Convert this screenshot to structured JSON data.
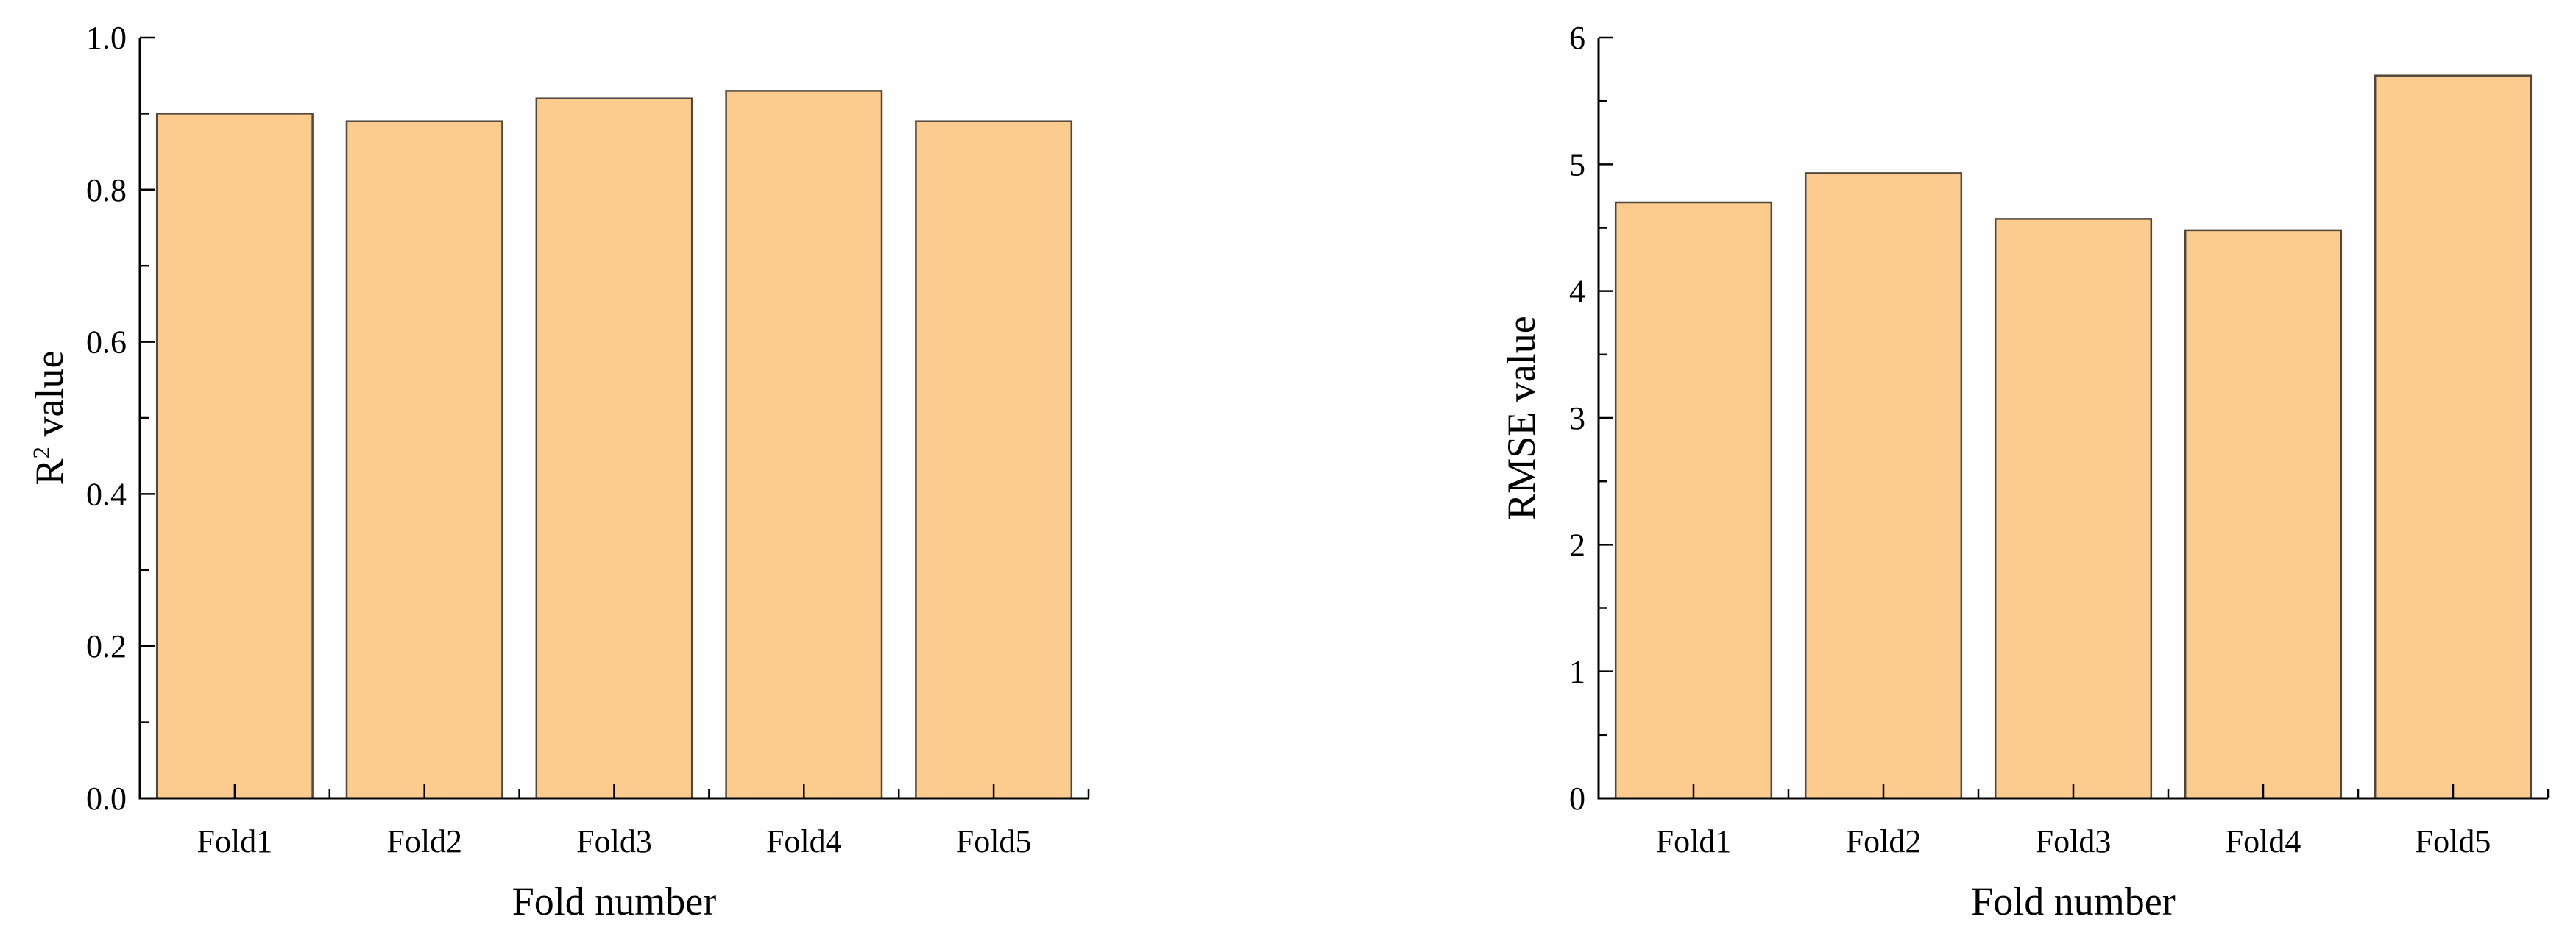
{
  "page": {
    "background": "#ffffff"
  },
  "chart_data": [
    {
      "type": "bar",
      "title": "",
      "categories": [
        "Fold1",
        "Fold2",
        "Fold3",
        "Fold4",
        "Fold5"
      ],
      "values": [
        0.9,
        0.89,
        0.92,
        0.93,
        0.89
      ],
      "xlabel": "Fold number",
      "ylabel": "R² value",
      "ylabel_parts": [
        {
          "text": "R",
          "superscript": false
        },
        {
          "text": "2",
          "superscript": true
        },
        {
          "text": " value",
          "superscript": false
        }
      ],
      "ylim": [
        0.0,
        1.0
      ],
      "y_major_step": 0.2,
      "y_minor_step": 0.1,
      "y_tick_labels": [
        "0.0",
        "0.2",
        "0.4",
        "0.6",
        "0.8",
        "1.0"
      ],
      "grid": false,
      "legend": false,
      "bar_fill": "#FCCB8E",
      "bar_stroke": "#51483D",
      "axis_color": "#000000"
    },
    {
      "type": "bar",
      "title": "",
      "categories": [
        "Fold1",
        "Fold2",
        "Fold3",
        "Fold4",
        "Fold5"
      ],
      "values": [
        4.7,
        4.93,
        4.57,
        4.48,
        5.7
      ],
      "xlabel": "Fold number",
      "ylabel": "RMSE value",
      "ylabel_parts": [
        {
          "text": "RMSE value",
          "superscript": false
        }
      ],
      "ylim": [
        0,
        6
      ],
      "y_major_step": 1,
      "y_minor_step": 0.5,
      "y_tick_labels": [
        "0",
        "1",
        "2",
        "3",
        "4",
        "5",
        "6"
      ],
      "grid": false,
      "legend": false,
      "bar_fill": "#FCCB8E",
      "bar_stroke": "#51483D",
      "axis_color": "#000000"
    }
  ]
}
